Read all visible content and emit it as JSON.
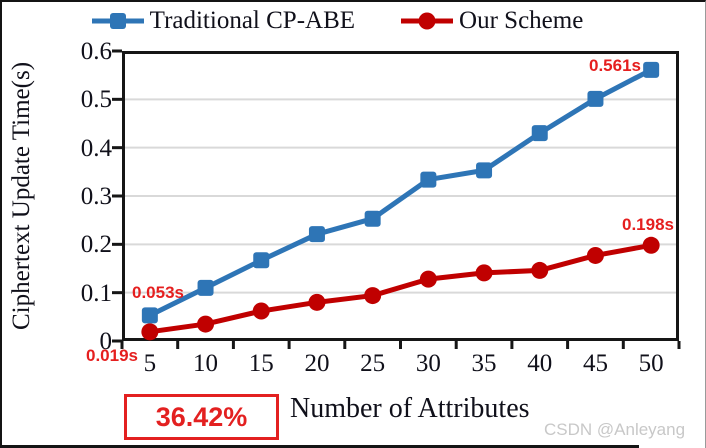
{
  "colors": {
    "blue_series": "#2e75b6",
    "red_series": "#c00000",
    "annotation_red": "#e51f1f",
    "callout_red": "#e32020",
    "grid": "#d9d9d9",
    "axis": "#161616",
    "text": "#10101a",
    "watermark_gray": "#c8c8c8"
  },
  "legend": {
    "items": [
      {
        "label": "Traditional CP-ABE",
        "color": "#2e75b6",
        "marker": "square"
      },
      {
        "label": "Our Scheme",
        "color": "#c00000",
        "marker": "circle"
      }
    ]
  },
  "chart_data": {
    "type": "line",
    "title": "",
    "xlabel": "Number of Attributes",
    "ylabel": "Ciphertext Update Time(s)",
    "x": [
      5,
      10,
      15,
      20,
      25,
      30,
      35,
      40,
      45,
      50
    ],
    "xtick_labels": [
      "5",
      "10",
      "15",
      "20",
      "25",
      "30",
      "35",
      "40",
      "45",
      "50"
    ],
    "ylim": [
      0,
      0.6
    ],
    "yticks": [
      0,
      0.1,
      0.2,
      0.3,
      0.4,
      0.5,
      0.6
    ],
    "ytick_labels": [
      "0",
      "0.1",
      "0.2",
      "0.3",
      "0.4",
      "0.5",
      "0.6"
    ],
    "grid": "horizontal",
    "legend_position": "top",
    "series": [
      {
        "name": "Traditional CP-ABE",
        "color": "#2e75b6",
        "marker": "square",
        "values": [
          0.053,
          0.11,
          0.167,
          0.221,
          0.253,
          0.334,
          0.353,
          0.43,
          0.501,
          0.561
        ]
      },
      {
        "name": "Our Scheme",
        "color": "#c00000",
        "marker": "circle",
        "values": [
          0.019,
          0.035,
          0.062,
          0.08,
          0.094,
          0.128,
          0.141,
          0.146,
          0.177,
          0.198
        ]
      }
    ],
    "annotations": [
      {
        "text": "0.053s",
        "series": "Traditional CP-ABE",
        "x": 5
      },
      {
        "text": "0.561s",
        "series": "Traditional CP-ABE",
        "x": 50
      },
      {
        "text": "0.019s",
        "series": "Our Scheme",
        "x": 5
      },
      {
        "text": "0.198s",
        "series": "Our Scheme",
        "x": 50
      }
    ]
  },
  "callout": {
    "value": "36.42%"
  },
  "watermark": {
    "text": "CSDN @Anleyang"
  }
}
